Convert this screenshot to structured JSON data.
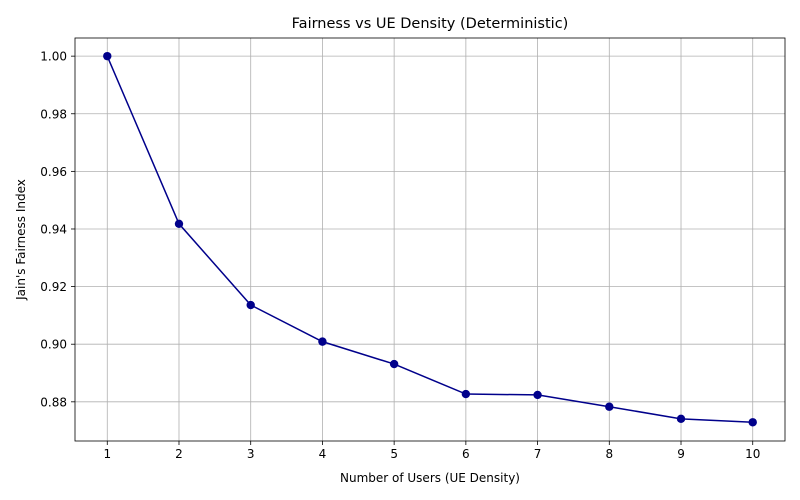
{
  "chart_data": {
    "type": "line",
    "title": "Fairness vs UE Density (Deterministic)",
    "xlabel": "Number of Users (UE Density)",
    "ylabel": "Jain's Fairness Index",
    "x": [
      1,
      2,
      3,
      4,
      5,
      6,
      7,
      8,
      9,
      10
    ],
    "x_tick_labels": [
      "1",
      "2",
      "3",
      "4",
      "5",
      "6",
      "7",
      "8",
      "9",
      "10"
    ],
    "y_ticks": [
      0.88,
      0.9,
      0.92,
      0.94,
      0.96,
      0.98,
      1.0
    ],
    "y_tick_labels": [
      "0.88",
      "0.90",
      "0.92",
      "0.94",
      "0.96",
      "0.98",
      "1.00"
    ],
    "xlim": [
      0.55,
      10.45
    ],
    "ylim": [
      0.8664,
      1.0063
    ],
    "grid": true,
    "series": [
      {
        "values": [
          1.0,
          0.9418,
          0.9136,
          0.9009,
          0.8931,
          0.8827,
          0.8824,
          0.8783,
          0.8741,
          0.8729
        ],
        "color": "#00008b",
        "marker": "circle"
      }
    ]
  }
}
